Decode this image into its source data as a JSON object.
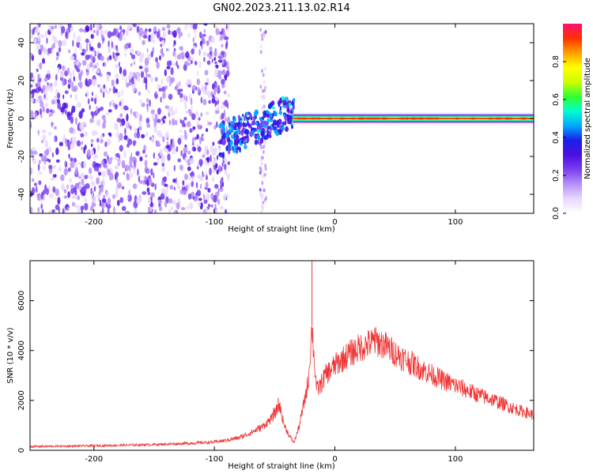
{
  "title": "GN02.2023.211.13.02.R14",
  "colors": {
    "snr_line": "#f03434",
    "colormap": [
      "#ffffff",
      "#e8d8ff",
      "#b890f8",
      "#7a3ff0",
      "#4b10e0",
      "#1a20e8",
      "#00a8ff",
      "#00ffcc",
      "#30ff30",
      "#ccff00",
      "#ffff00",
      "#ffa000",
      "#ff3000",
      "#ff1070"
    ]
  },
  "chart_data": [
    {
      "type": "heatmap",
      "title": "GN02.2023.211.13.02.R14",
      "xlabel": "Height of straight line (km)",
      "ylabel": "Frequency (Hz)",
      "xlim": [
        -253,
        165
      ],
      "ylim": [
        -50,
        50
      ],
      "xticks": [
        "-200",
        "-100",
        "0",
        "100"
      ],
      "yticks": [
        "-40",
        "-20",
        "0",
        "20",
        "40"
      ],
      "xtick_values": [
        -200,
        -100,
        0,
        100
      ],
      "ytick_values": [
        -40,
        -20,
        0,
        20,
        40
      ],
      "colorbar": {
        "label": "Normalized spectral amplitude",
        "range": [
          0,
          1
        ],
        "ticks": [
          "0.0",
          "0.2",
          "0.4",
          "0.6",
          "0.8"
        ],
        "tick_values": [
          0.0,
          0.2,
          0.4,
          0.6,
          0.8
        ]
      },
      "regions": [
        {
          "x": [
            -253,
            -90
          ],
          "freq": [
            -50,
            50
          ],
          "amplitude": 0.15,
          "pattern": "broadband speckle noise"
        },
        {
          "x": [
            -61,
            -57
          ],
          "freq": [
            -50,
            50
          ],
          "amplitude": 0.1,
          "pattern": "faint vertical stripe"
        },
        {
          "x": [
            -95,
            -35
          ],
          "freq": [
            -20,
            12
          ],
          "amplitude": 0.4,
          "pattern": "rising oscillation onset"
        },
        {
          "x": [
            -35,
            165
          ],
          "freq": [
            -3,
            3
          ],
          "amplitude": 0.75,
          "pattern": "narrow band at 0 Hz"
        }
      ]
    },
    {
      "type": "line",
      "xlabel": "Height of straight line (km)",
      "ylabel": "SNR (10 * v/v)",
      "xlim": [
        -253,
        165
      ],
      "ylim": [
        0,
        7600
      ],
      "xticks": [
        "-200",
        "-100",
        "0",
        "100"
      ],
      "yticks": [
        "0",
        "2000",
        "4000",
        "6000"
      ],
      "xtick_values": [
        -200,
        -100,
        0,
        100
      ],
      "ytick_values": [
        0,
        2000,
        4000,
        6000
      ],
      "series": [
        {
          "x": [
            -253,
            -200,
            -150,
            -120,
            -100,
            -90,
            -80,
            -70,
            -60,
            -52,
            -46,
            -42,
            -38,
            -34,
            -30,
            -26,
            -22,
            -19,
            -17,
            -15,
            -12,
            -8,
            -4,
            0,
            10,
            20,
            30,
            35,
            40,
            50,
            60,
            70,
            80,
            90,
            100,
            110,
            120,
            130,
            140,
            150,
            160,
            165
          ],
          "y": [
            150,
            180,
            230,
            280,
            330,
            400,
            500,
            700,
            950,
            1300,
            1800,
            1000,
            600,
            300,
            900,
            1800,
            2800,
            5000,
            3500,
            2400,
            2600,
            3000,
            3200,
            3400,
            3800,
            4100,
            4300,
            4350,
            4250,
            3900,
            3600,
            3300,
            3050,
            2800,
            2600,
            2400,
            2200,
            2050,
            1850,
            1650,
            1500,
            1400
          ]
        }
      ],
      "spikes": [
        {
          "x": -19,
          "y": 7600
        },
        {
          "x": -47,
          "y": 2100
        },
        {
          "x": -51,
          "y": 1700
        },
        {
          "x": 33,
          "y": 4900
        }
      ]
    }
  ]
}
